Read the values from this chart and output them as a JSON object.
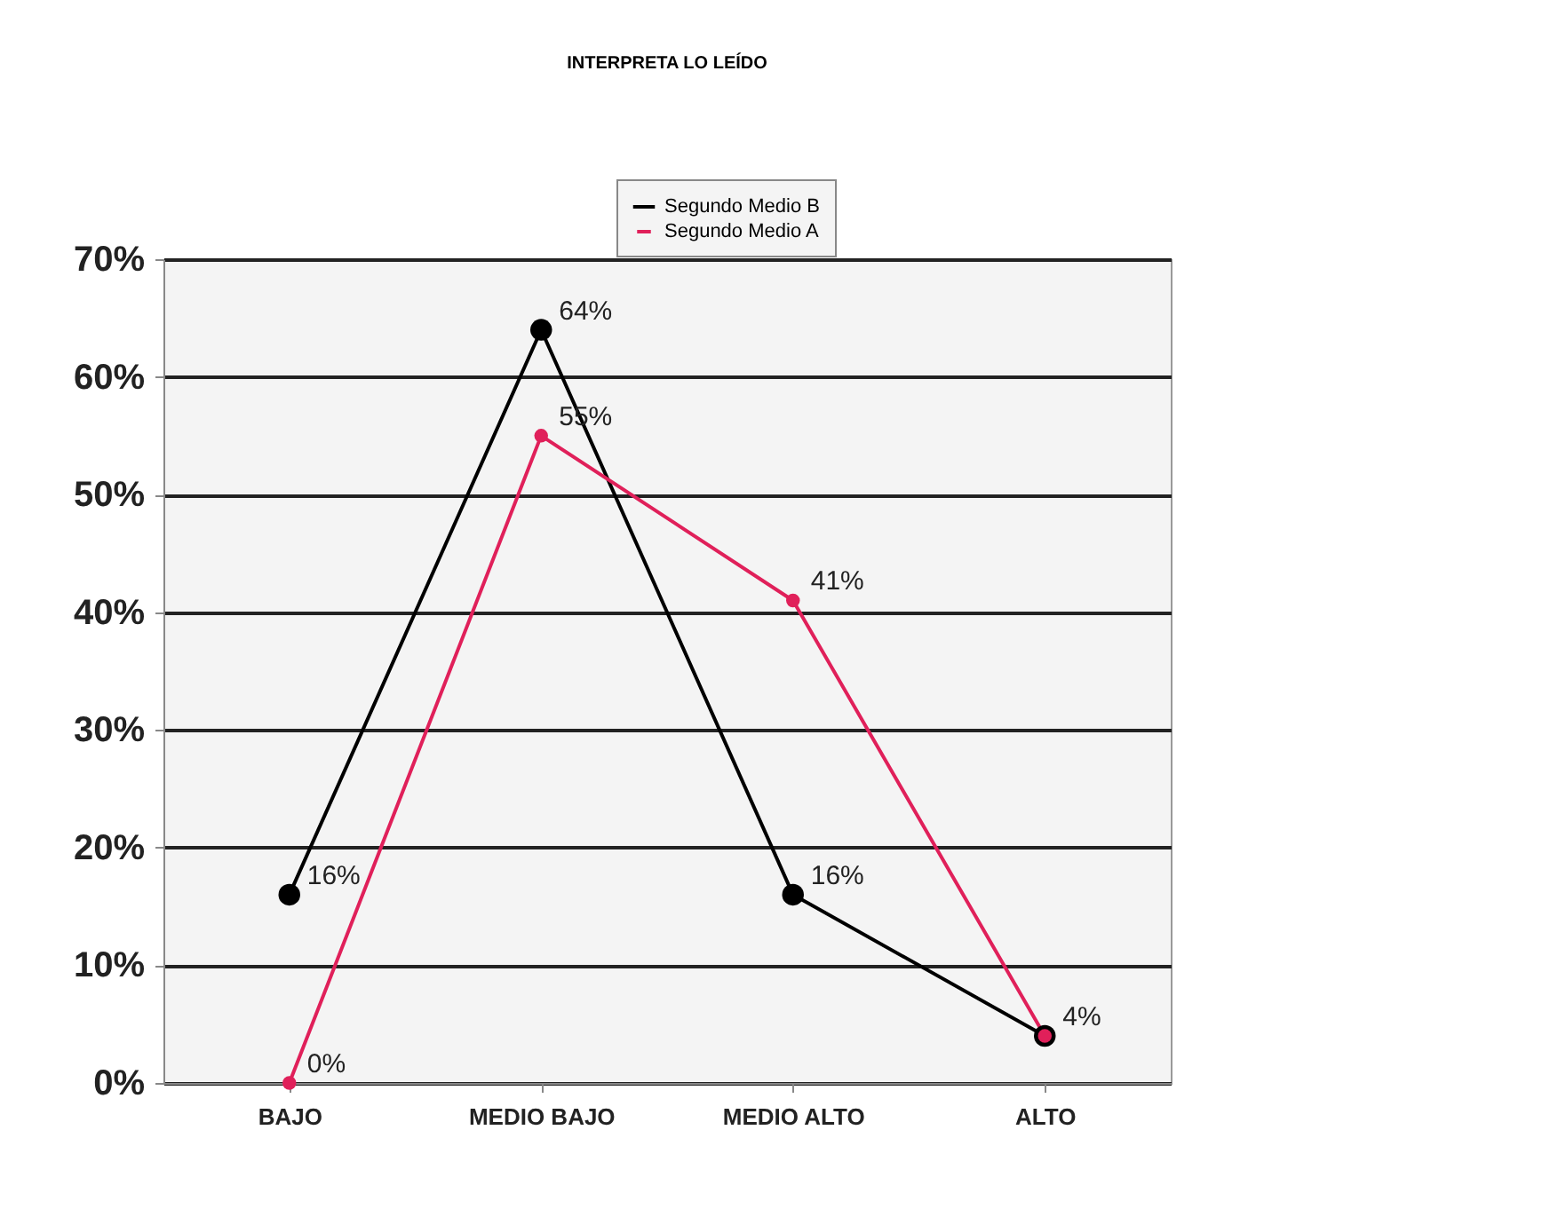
{
  "chart_data": {
    "type": "line",
    "title": "INTERPRETA LO LEÍDO",
    "categories": [
      "BAJO",
      "MEDIO BAJO",
      "MEDIO ALTO",
      "ALTO"
    ],
    "series": [
      {
        "name": "Segundo Medio B",
        "color": "#000000",
        "values": [
          16,
          64,
          16,
          4
        ],
        "value_labels": [
          "16%",
          "64%",
          "16%",
          null
        ]
      },
      {
        "name": "Segundo Medio A",
        "color": "#e0205a",
        "values": [
          0,
          55,
          41,
          4
        ],
        "value_labels": [
          "0%",
          "55%",
          "41%",
          "4%"
        ]
      }
    ],
    "ylim": [
      0,
      70
    ],
    "yticks": [
      {
        "value": 0,
        "label": "0%"
      },
      {
        "value": 10,
        "label": "10%"
      },
      {
        "value": 20,
        "label": "20%"
      },
      {
        "value": 30,
        "label": "30%"
      },
      {
        "value": 40,
        "label": "40%"
      },
      {
        "value": 50,
        "label": "50%"
      },
      {
        "value": 60,
        "label": "60%"
      },
      {
        "value": 70,
        "label": "70%"
      }
    ],
    "grid": "y",
    "legend": "top",
    "marker": "circle"
  }
}
